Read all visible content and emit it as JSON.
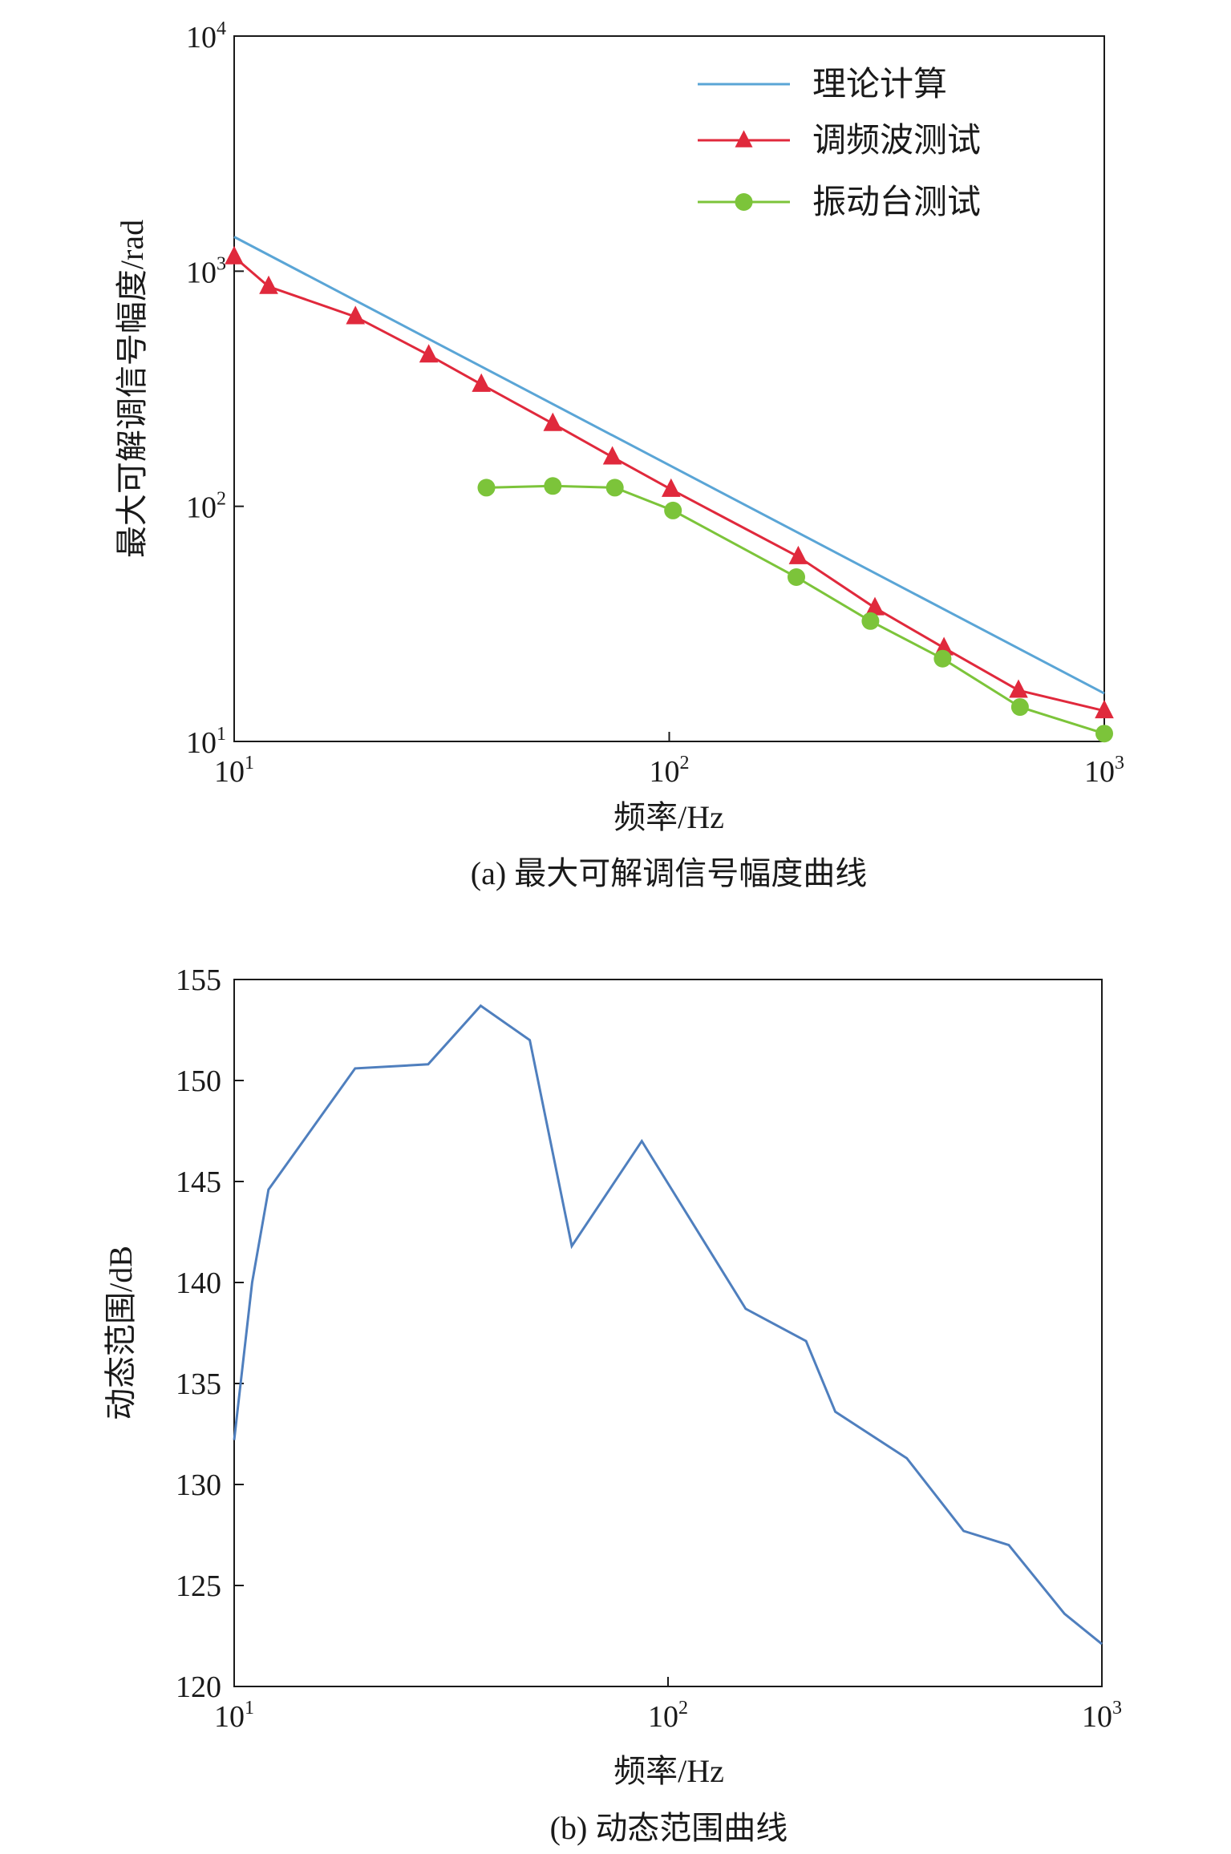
{
  "chart_data": [
    {
      "type": "line",
      "caption": "(a) 最大可解调信号幅度曲线",
      "xlabel": "频率/Hz",
      "ylabel": "最大可解调信号幅度/rad",
      "xscale": "log",
      "yscale": "log",
      "xlim": [
        10,
        1000
      ],
      "ylim": [
        10,
        10000
      ],
      "x_ticks": [
        {
          "base": "10",
          "exp": "1"
        },
        {
          "base": "10",
          "exp": "2"
        },
        {
          "base": "10",
          "exp": "3"
        }
      ],
      "y_ticks": [
        {
          "base": "10",
          "exp": "1"
        },
        {
          "base": "10",
          "exp": "2"
        },
        {
          "base": "10",
          "exp": "3"
        },
        {
          "base": "10",
          "exp": "4"
        }
      ],
      "legend_position": "top-right",
      "grid": false,
      "series": [
        {
          "name": "理论计算",
          "color": "#5aa5d6",
          "marker": "none",
          "points": [
            [
              10,
              1400
            ],
            [
              1000,
              16
            ]
          ]
        },
        {
          "name": "调频波测试",
          "color": "#e0293c",
          "marker": "triangle",
          "points": [
            [
              10,
              1150
            ],
            [
              12,
              860
            ],
            [
              19,
              640
            ],
            [
              28,
              440
            ],
            [
              37,
              330
            ],
            [
              54,
              225
            ],
            [
              74,
              162
            ],
            [
              101,
              118
            ],
            [
              198,
              61
            ],
            [
              297,
              37
            ],
            [
              428,
              25
            ],
            [
              635,
              16.5
            ],
            [
              1000,
              13.5
            ]
          ]
        },
        {
          "name": "振动台测试",
          "color": "#7cc43a",
          "marker": "circle",
          "points": [
            [
              38,
              120
            ],
            [
              54,
              122
            ],
            [
              75,
              120
            ],
            [
              102,
              96
            ],
            [
              196,
              50
            ],
            [
              290,
              32.5
            ],
            [
              425,
              22.5
            ],
            [
              640,
              14
            ],
            [
              1000,
              10.8
            ]
          ]
        }
      ]
    },
    {
      "type": "line",
      "caption": "(b) 动态范围曲线",
      "xlabel": "频率/Hz",
      "ylabel": "动态范围/dB",
      "xscale": "log",
      "xlim": [
        10,
        1000
      ],
      "ylim": [
        120,
        155
      ],
      "x_ticks": [
        {
          "base": "10",
          "exp": "1"
        },
        {
          "base": "10",
          "exp": "2"
        },
        {
          "base": "10",
          "exp": "3"
        }
      ],
      "y_ticks": [
        "120",
        "125",
        "130",
        "135",
        "140",
        "145",
        "150",
        "155"
      ],
      "grid": false,
      "series": [
        {
          "color": "#4f7fbe",
          "points": [
            [
              10,
              132.2
            ],
            [
              11,
              140
            ],
            [
              12,
              144.6
            ],
            [
              19,
              150.6
            ],
            [
              28,
              150.8
            ],
            [
              37,
              153.7
            ],
            [
              48,
              152
            ],
            [
              60,
              141.8
            ],
            [
              87,
              147
            ],
            [
              151,
              138.7
            ],
            [
              208,
              137.1
            ],
            [
              243,
              133.6
            ],
            [
              355,
              131.3
            ],
            [
              480,
              127.7
            ],
            [
              610,
              127
            ],
            [
              820,
              123.6
            ],
            [
              1000,
              122.1
            ]
          ]
        }
      ]
    }
  ]
}
